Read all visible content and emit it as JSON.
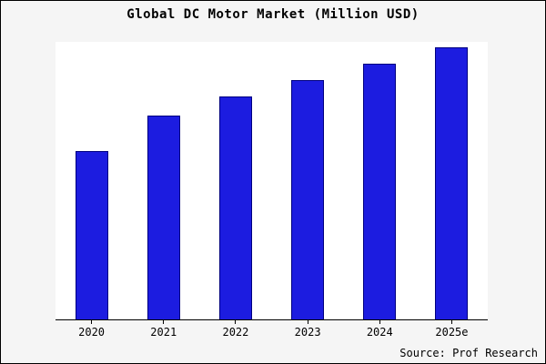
{
  "title": "Global DC Motor Market (Million USD)",
  "source": "Source: Prof Research",
  "colors": {
    "bar_fill": "#1c1ce0",
    "bar_edge": "#000080",
    "outer_background": "#f5f5f5",
    "plot_background": "#ffffff",
    "axis": "#000000"
  },
  "chart_data": {
    "type": "bar",
    "categories": [
      "2020",
      "2021",
      "2022",
      "2023",
      "2024",
      "2025e"
    ],
    "values": [
      62,
      75,
      82,
      88,
      94,
      100
    ],
    "title": "Global DC Motor Market (Million USD)",
    "xlabel": "",
    "ylabel": "",
    "ylim": [
      0,
      102
    ],
    "grid": false,
    "legend": "none",
    "annotations": [
      "Source: Prof Research"
    ]
  }
}
